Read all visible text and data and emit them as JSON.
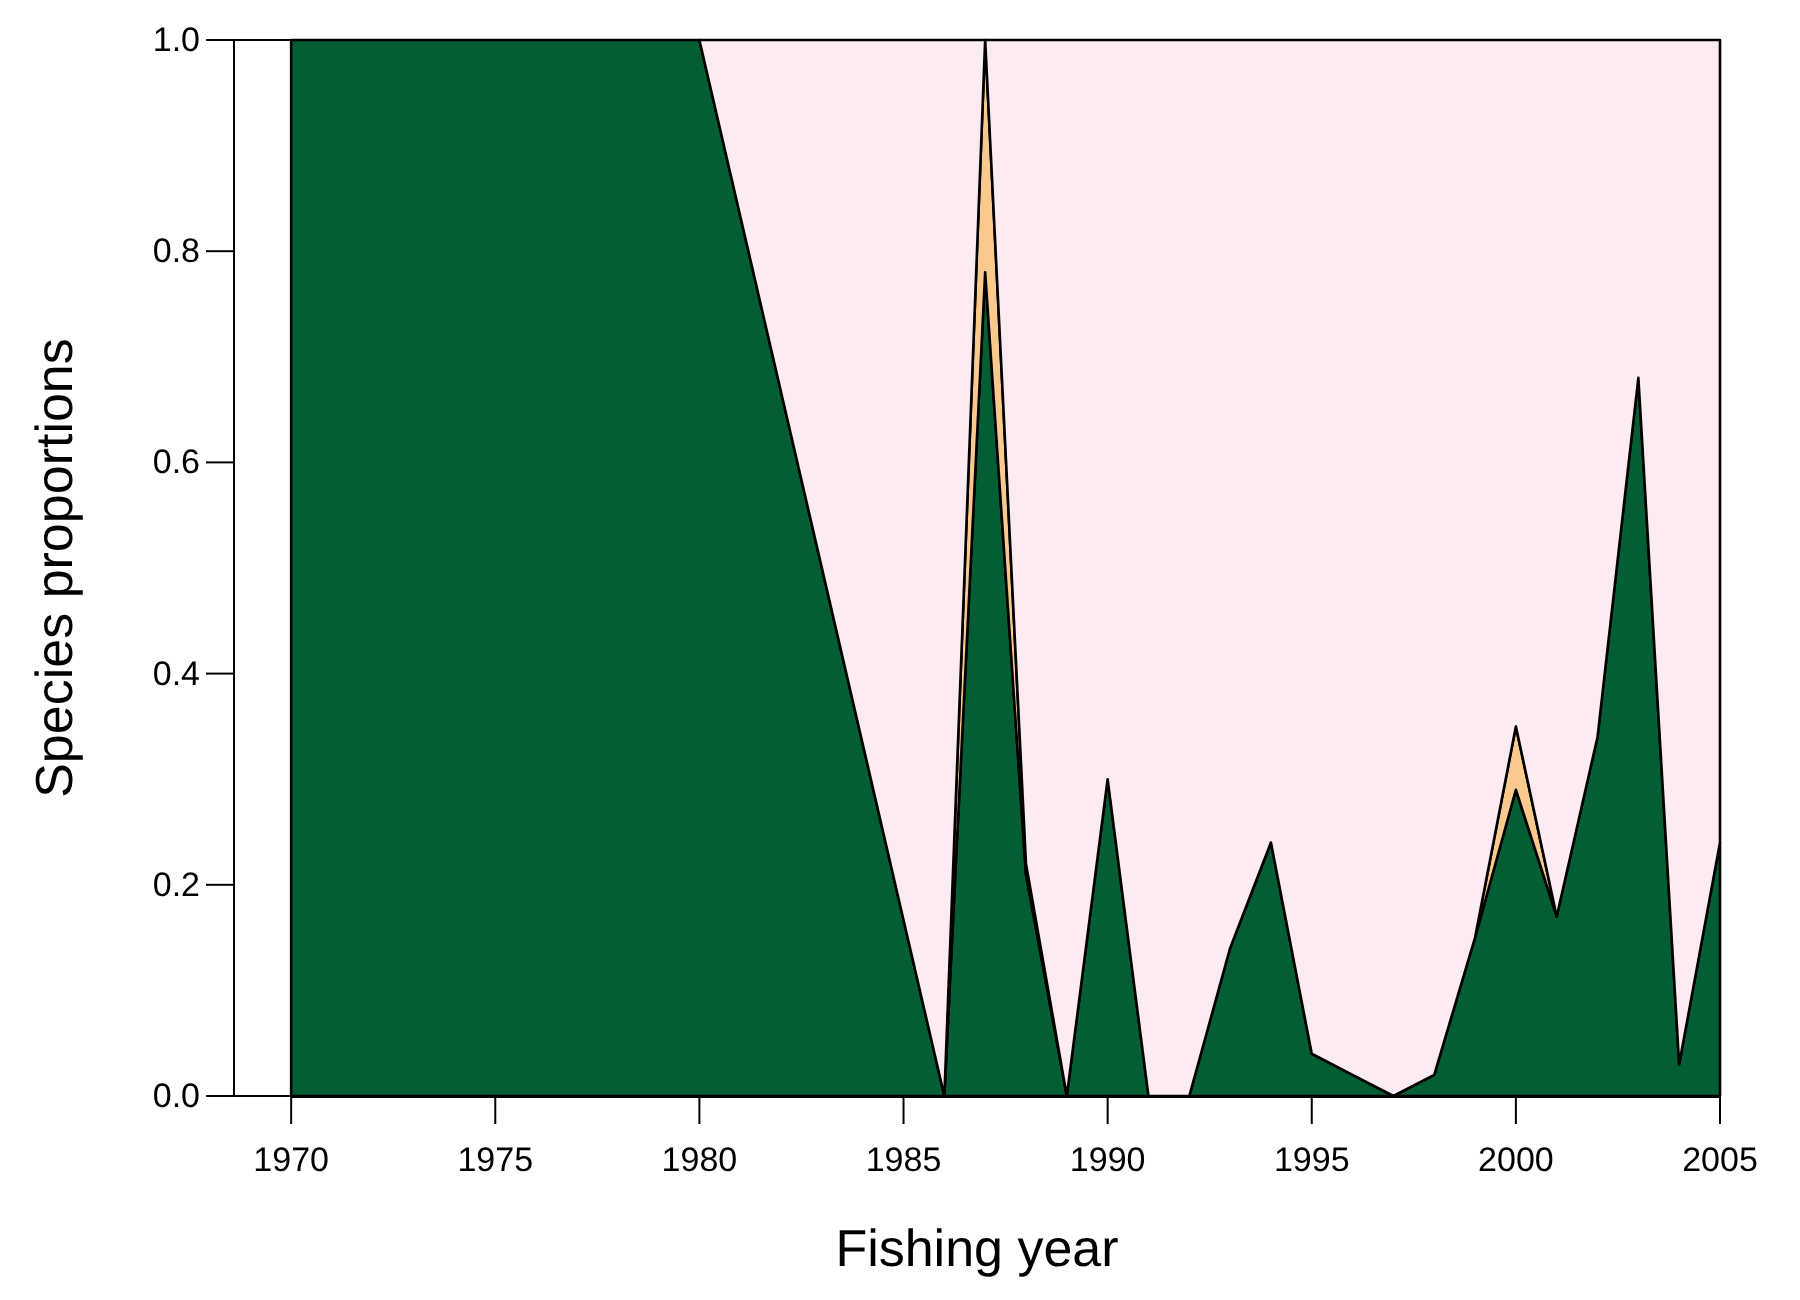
{
  "chart_data": {
    "type": "area",
    "stacked": true,
    "xlabel": "Fishing year",
    "ylabel": "Species proportions",
    "x": [
      1970,
      1971,
      1972,
      1973,
      1974,
      1975,
      1976,
      1977,
      1978,
      1979,
      1980,
      1986,
      1987,
      1988,
      1989,
      1990,
      1991,
      1992,
      1993,
      1994,
      1995,
      1996,
      1997,
      1998,
      1999,
      2000,
      2001,
      2002,
      2003,
      2004,
      2005
    ],
    "series": [
      {
        "color": "#035f33",
        "values": [
          1,
          1,
          1,
          1,
          1,
          1,
          1,
          1,
          1,
          1,
          1,
          0,
          0.78,
          0.21,
          0,
          0.3,
          0,
          0,
          0.14,
          0.24,
          0.04,
          0.02,
          0,
          0.02,
          0.15,
          0.29,
          0.17,
          0.34,
          0.68,
          0.03,
          0.24
        ]
      },
      {
        "color": "#f9c98e",
        "values": [
          null,
          null,
          null,
          null,
          null,
          null,
          null,
          null,
          null,
          null,
          null,
          0,
          0.22,
          0.01,
          0,
          null,
          null,
          null,
          null,
          null,
          null,
          null,
          null,
          null,
          0,
          0.06,
          0,
          null,
          null,
          null,
          null
        ]
      },
      {
        "color": "#fcebf1",
        "values": [
          null,
          null,
          null,
          null,
          null,
          null,
          null,
          null,
          null,
          null,
          0,
          1,
          0,
          0.78,
          1,
          0.7,
          1,
          1,
          0.86,
          0.76,
          0.96,
          0.98,
          1,
          0.98,
          0.85,
          0.65,
          0.83,
          0.66,
          0.32,
          0.97,
          0.76
        ]
      }
    ],
    "xlim": [
      1968.6,
      2005
    ],
    "xticks": [
      1970,
      1975,
      1980,
      1985,
      1990,
      1995,
      2000,
      2005
    ],
    "ylim": [
      0,
      1
    ],
    "yticks": [
      {
        "value": 0,
        "label": "0.0"
      },
      0.2,
      0.4,
      0.6,
      0.8,
      {
        "value": 1,
        "label": "1.0"
      }
    ]
  }
}
